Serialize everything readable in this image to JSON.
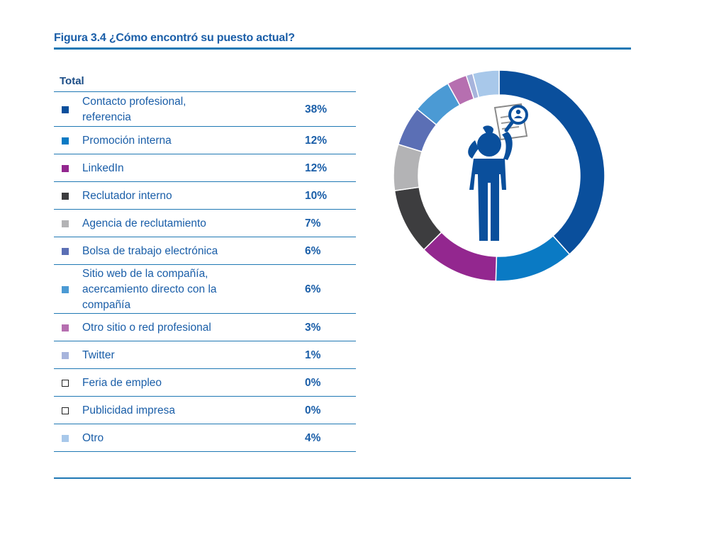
{
  "figure": {
    "title": "Figura 3.4 ¿Cómo encontró su puesto actual?",
    "table_header": "Total"
  },
  "chart_data": {
    "type": "pie",
    "style": "donut",
    "title": "Figura 3.4 ¿Cómo encontró su puesto actual?",
    "legend_header": "Total",
    "unit": "%",
    "categories": [
      "Contacto profesional, referencia",
      "Promoción interna",
      "LinkedIn",
      "Reclutador interno",
      "Agencia de reclutamiento",
      "Bolsa de trabajo electrónica",
      "Sitio web de la compañía, acercamiento directo con la compañía",
      "Otro sitio o red profesional",
      "Twitter",
      "Feria de empleo",
      "Publicidad impresa",
      "Otro"
    ],
    "values": [
      38,
      12,
      12,
      10,
      7,
      6,
      6,
      3,
      1,
      0,
      0,
      4
    ],
    "labels": [
      "38%",
      "12%",
      "12%",
      "10%",
      "7%",
      "6%",
      "6%",
      "3%",
      "1%",
      "0%",
      "0%",
      "4%"
    ],
    "colors": [
      "#0a4f9c",
      "#0a7ac4",
      "#93278f",
      "#3d3d3f",
      "#b3b3b5",
      "#5b6fb5",
      "#4b9ad4",
      "#b66fb0",
      "#a7b4dc",
      "#ffffff",
      "#ffffff",
      "#a8c8ea"
    ],
    "hollow_markers": [
      false,
      false,
      false,
      false,
      false,
      false,
      false,
      false,
      false,
      true,
      true,
      false
    ],
    "center_icon": "person-with-magnifier-and-resume-icon"
  }
}
